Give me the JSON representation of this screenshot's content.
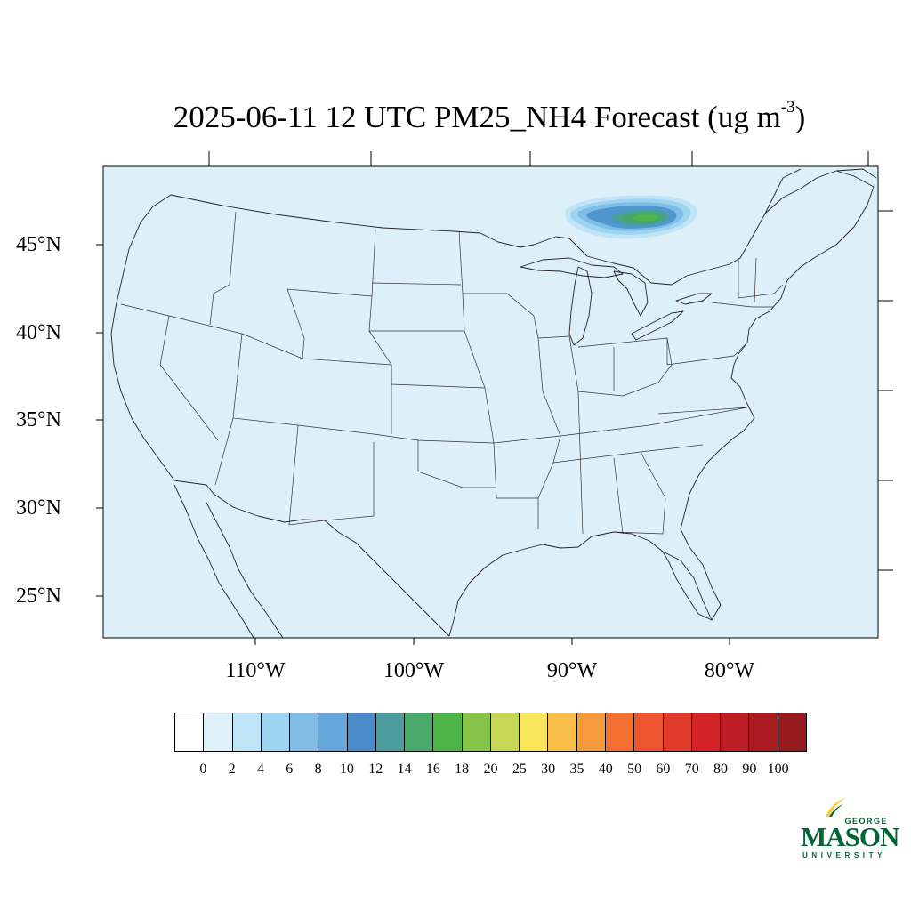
{
  "title": {
    "text": "2025-06-11 12 UTC PM25_NH4 Forecast (ug m",
    "superscript": "-3",
    "close": ")"
  },
  "map": {
    "region": "Contiguous United States",
    "background_color": "#ddf0fa",
    "lat_labels": [
      "45°N",
      "40°N",
      "35°N",
      "30°N",
      "25°N"
    ],
    "lon_labels": [
      "110°W",
      "100°W",
      "90°W",
      "80°W"
    ],
    "plume": {
      "description_level_max": 18,
      "colors": [
        "#c0e4f5",
        "#9dd4f2",
        "#7dbde6",
        "#4e97cf",
        "#4a9e9f",
        "#47a66e",
        "#4fb64b"
      ]
    }
  },
  "colorbar": {
    "colors": [
      "#ffffff",
      "#dff2fb",
      "#bde5f7",
      "#9ed5f3",
      "#82bde6",
      "#65a7da",
      "#4a8cc9",
      "#4a9c9f",
      "#4aaa6e",
      "#4db548",
      "#87c54a",
      "#c7d654",
      "#f8e55a",
      "#f8be48",
      "#f79a3b",
      "#f37030",
      "#ec552d",
      "#e03a2b",
      "#d42229",
      "#be1e26",
      "#aa1b22",
      "#951b1e"
    ],
    "labels": [
      "0",
      "2",
      "4",
      "6",
      "8",
      "10",
      "12",
      "14",
      "16",
      "18",
      "20",
      "25",
      "30",
      "35",
      "40",
      "50",
      "60",
      "70",
      "80",
      "90",
      "100"
    ]
  },
  "logo": {
    "line1": "GEORGE",
    "line2": "MASON",
    "line3": "UNIVERSITY",
    "green": "#006633",
    "gold": "#ffcc33"
  }
}
